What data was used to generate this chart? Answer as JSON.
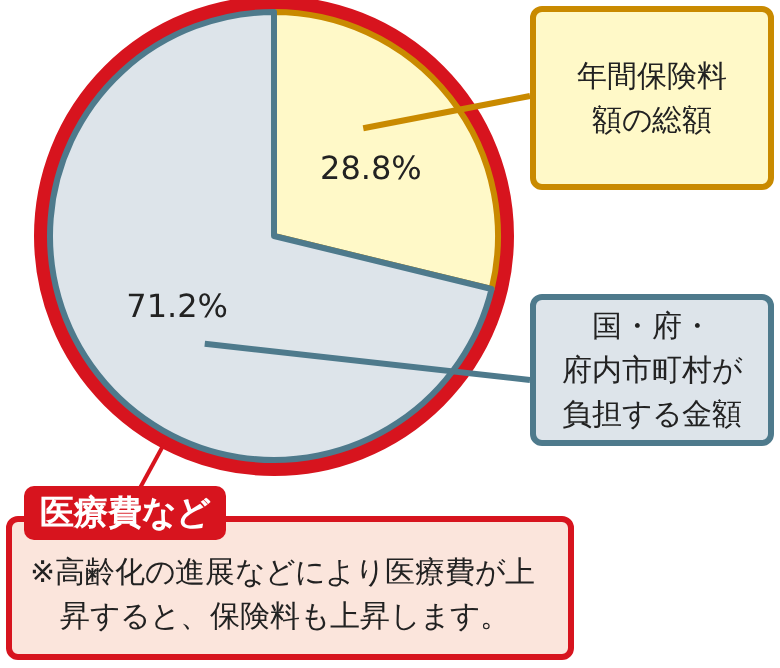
{
  "chart_data": {
    "type": "pie",
    "categories": [
      "年間保険料額の総額",
      "国・府・府内市町村が負担する金額"
    ],
    "values": [
      28.8,
      71.2
    ],
    "value_labels": [
      "28.8%",
      "71.2%"
    ],
    "colors": [
      "#fff9c8",
      "#dde4ea"
    ],
    "annotations": [
      "医療費など",
      "※高齢化の進展などにより医療費が上昇すると、保険料も上昇します。"
    ]
  }
}
